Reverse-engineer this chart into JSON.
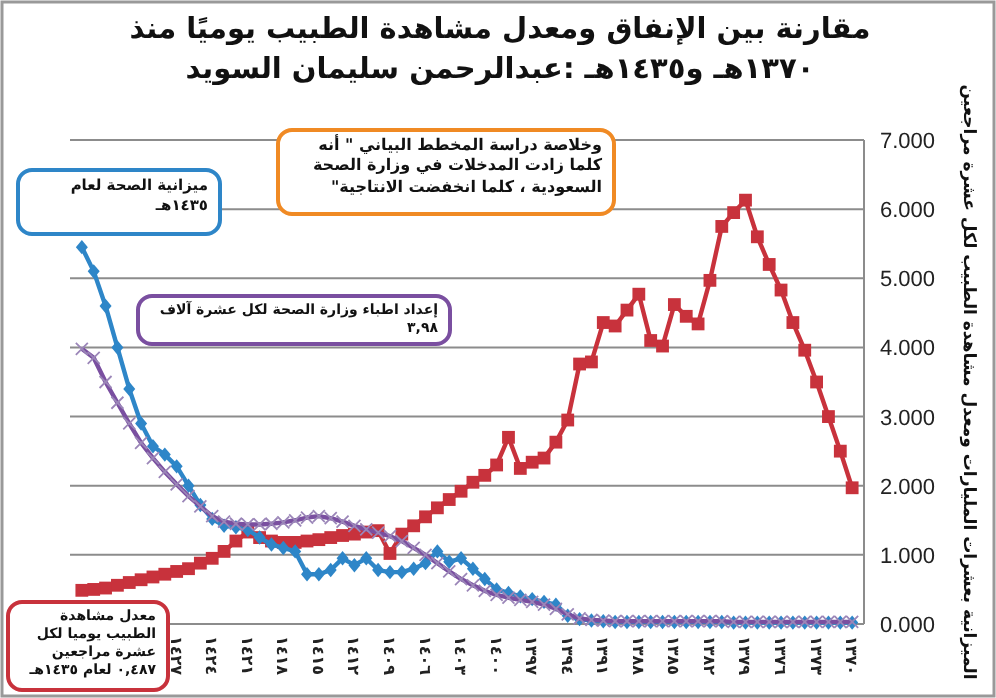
{
  "chart_data": {
    "type": "line",
    "title": "مقارنة بين الإنفاق  ومعدل مشاهدة الطبيب يوميًا منذ ١٣٧٠هـ و١٤٣٥هـ :عبدالرحمن سليمان السويد",
    "ylabel": "الميزانية بعشرات المليارات ومعدل مشاهدة الطبيب لكل عشرة مراجعين",
    "x": [
      1370,
      1371,
      1372,
      1373,
      1374,
      1375,
      1376,
      1377,
      1378,
      1379,
      1380,
      1381,
      1382,
      1383,
      1384,
      1385,
      1386,
      1387,
      1388,
      1389,
      1390,
      1391,
      1392,
      1393,
      1394,
      1395,
      1396,
      1397,
      1398,
      1399,
      1400,
      1401,
      1402,
      1403,
      1404,
      1405,
      1406,
      1407,
      1408,
      1409,
      1410,
      1411,
      1412,
      1413,
      1414,
      1415,
      1416,
      1417,
      1418,
      1419,
      1420,
      1421,
      1422,
      1423,
      1424,
      1425,
      1426,
      1427,
      1428,
      1429,
      1430,
      1431,
      1432,
      1433,
      1434,
      1435
    ],
    "series": [
      {
        "color": "#c8323c",
        "marker": "square",
        "values": [
          1.97,
          2.5,
          3.0,
          3.5,
          3.96,
          4.36,
          4.83,
          5.2,
          5.6,
          6.13,
          5.95,
          5.75,
          4.97,
          4.34,
          4.45,
          4.62,
          4.02,
          4.1,
          4.77,
          4.54,
          4.31,
          4.36,
          3.79,
          3.76,
          2.95,
          2.63,
          2.4,
          2.34,
          2.25,
          2.7,
          2.3,
          2.15,
          2.05,
          1.92,
          1.8,
          1.68,
          1.55,
          1.42,
          1.3,
          1.02,
          1.35,
          1.33,
          1.3,
          1.28,
          1.25,
          1.22,
          1.2,
          1.18,
          1.18,
          1.2,
          1.25,
          1.33,
          1.2,
          1.05,
          0.95,
          0.88,
          0.8,
          0.76,
          0.72,
          0.68,
          0.64,
          0.6,
          0.56,
          0.52,
          0.5,
          0.487
        ]
      },
      {
        "color": "#2e86c8",
        "marker": "diamond",
        "values": [
          0.02,
          0.02,
          0.02,
          0.02,
          0.02,
          0.02,
          0.02,
          0.02,
          0.02,
          0.02,
          0.02,
          0.03,
          0.03,
          0.03,
          0.03,
          0.03,
          0.03,
          0.03,
          0.03,
          0.03,
          0.03,
          0.04,
          0.05,
          0.07,
          0.12,
          0.28,
          0.32,
          0.36,
          0.4,
          0.45,
          0.5,
          0.65,
          0.8,
          0.95,
          0.9,
          1.05,
          0.88,
          0.8,
          0.75,
          0.75,
          0.78,
          0.95,
          0.85,
          0.95,
          0.78,
          0.72,
          0.72,
          1.05,
          1.1,
          1.15,
          1.25,
          1.36,
          1.4,
          1.42,
          1.52,
          1.72,
          2.0,
          2.28,
          2.45,
          2.57,
          2.9,
          3.4,
          4.0,
          4.6,
          5.1,
          5.45
        ]
      },
      {
        "color": "#7a4fa0",
        "marker": "cross",
        "values": [
          0.03,
          0.03,
          0.03,
          0.03,
          0.03,
          0.03,
          0.03,
          0.03,
          0.03,
          0.03,
          0.03,
          0.04,
          0.04,
          0.04,
          0.04,
          0.04,
          0.04,
          0.04,
          0.04,
          0.04,
          0.04,
          0.05,
          0.06,
          0.08,
          0.14,
          0.22,
          0.28,
          0.32,
          0.35,
          0.38,
          0.42,
          0.48,
          0.56,
          0.65,
          0.76,
          0.88,
          1.0,
          1.1,
          1.2,
          1.27,
          1.32,
          1.37,
          1.42,
          1.48,
          1.53,
          1.56,
          1.54,
          1.5,
          1.47,
          1.45,
          1.44,
          1.44,
          1.45,
          1.48,
          1.56,
          1.7,
          1.85,
          2.02,
          2.2,
          2.4,
          2.62,
          2.9,
          3.2,
          3.5,
          3.85,
          3.98
        ]
      }
    ],
    "xlim": [
      1436,
      1369
    ],
    "xticks": [
      {
        "value": 1370,
        "label": "١٣٧٠"
      },
      {
        "value": 1373,
        "label": "١٣٧٣"
      },
      {
        "value": 1376,
        "label": "١٣٧٦"
      },
      {
        "value": 1379,
        "label": "١٣٧٩"
      },
      {
        "value": 1382,
        "label": "١٣٨٢"
      },
      {
        "value": 1385,
        "label": "١٣٨٥"
      },
      {
        "value": 1388,
        "label": "١٣٨٨"
      },
      {
        "value": 1391,
        "label": "١٣٩١"
      },
      {
        "value": 1394,
        "label": "١٣٩٤"
      },
      {
        "value": 1397,
        "label": "١٣٩٧"
      },
      {
        "value": 1400,
        "label": "١٤٠٠"
      },
      {
        "value": 1403,
        "label": "١٤٠٣"
      },
      {
        "value": 1406,
        "label": "١٤٠٦"
      },
      {
        "value": 1409,
        "label": "١٤٠٩"
      },
      {
        "value": 1412,
        "label": "١٤١٢"
      },
      {
        "value": 1415,
        "label": "١٤١٥"
      },
      {
        "value": 1418,
        "label": "١٤١٨"
      },
      {
        "value": 1421,
        "label": "١٤٢١"
      },
      {
        "value": 1424,
        "label": "١٤٢٤"
      },
      {
        "value": 1427,
        "label": "١٤٢٧"
      }
    ],
    "ylim": [
      0,
      7
    ],
    "yticks": [
      {
        "value": 0,
        "label": "0.000"
      },
      {
        "value": 1,
        "label": "1.000"
      },
      {
        "value": 2,
        "label": "2.000"
      },
      {
        "value": 3,
        "label": "3.000"
      },
      {
        "value": 4,
        "label": "4.000"
      },
      {
        "value": 5,
        "label": "5.000"
      },
      {
        "value": 6,
        "label": "6.000"
      },
      {
        "value": 7,
        "label": "7.000"
      }
    ],
    "grid": "y",
    "annotations": [
      "وخلاصة دراسة المخطط البياني \" أنه كلما زادت المدخلات في وزارة الصحة السعودية ، كلما انخفضت الانتاجية\"",
      "ميزانية الصحة لعام ١٤٣٥هـ",
      "إعداد اطباء وزارة الصحة لكل عشرة آلاف ٣,٩٨",
      "معدل مشاهدة الطبيب يوميا لكل عشرة مراجعين ٠,٤٨٧ لعام ١٤٣٥هـ"
    ]
  }
}
